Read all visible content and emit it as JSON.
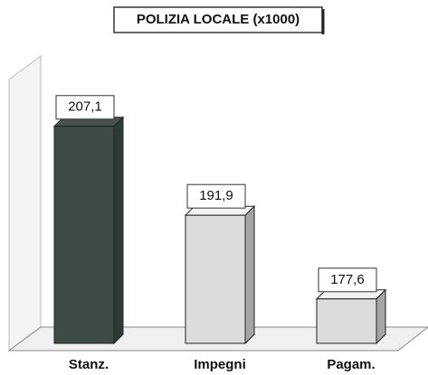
{
  "chart_data": {
    "type": "bar3d",
    "title": "POLIZIA LOCALE (x1000)",
    "categories": [
      "Stanz.",
      "Impegni",
      "Pagam."
    ],
    "values": [
      207.1,
      191.9,
      177.6
    ],
    "value_labels": [
      "207,1",
      "191,9",
      "177,6"
    ],
    "colors": [
      "#3e4c46",
      "#dcdcdc",
      "#dcdcdc"
    ],
    "ylim": [
      170,
      210
    ]
  }
}
